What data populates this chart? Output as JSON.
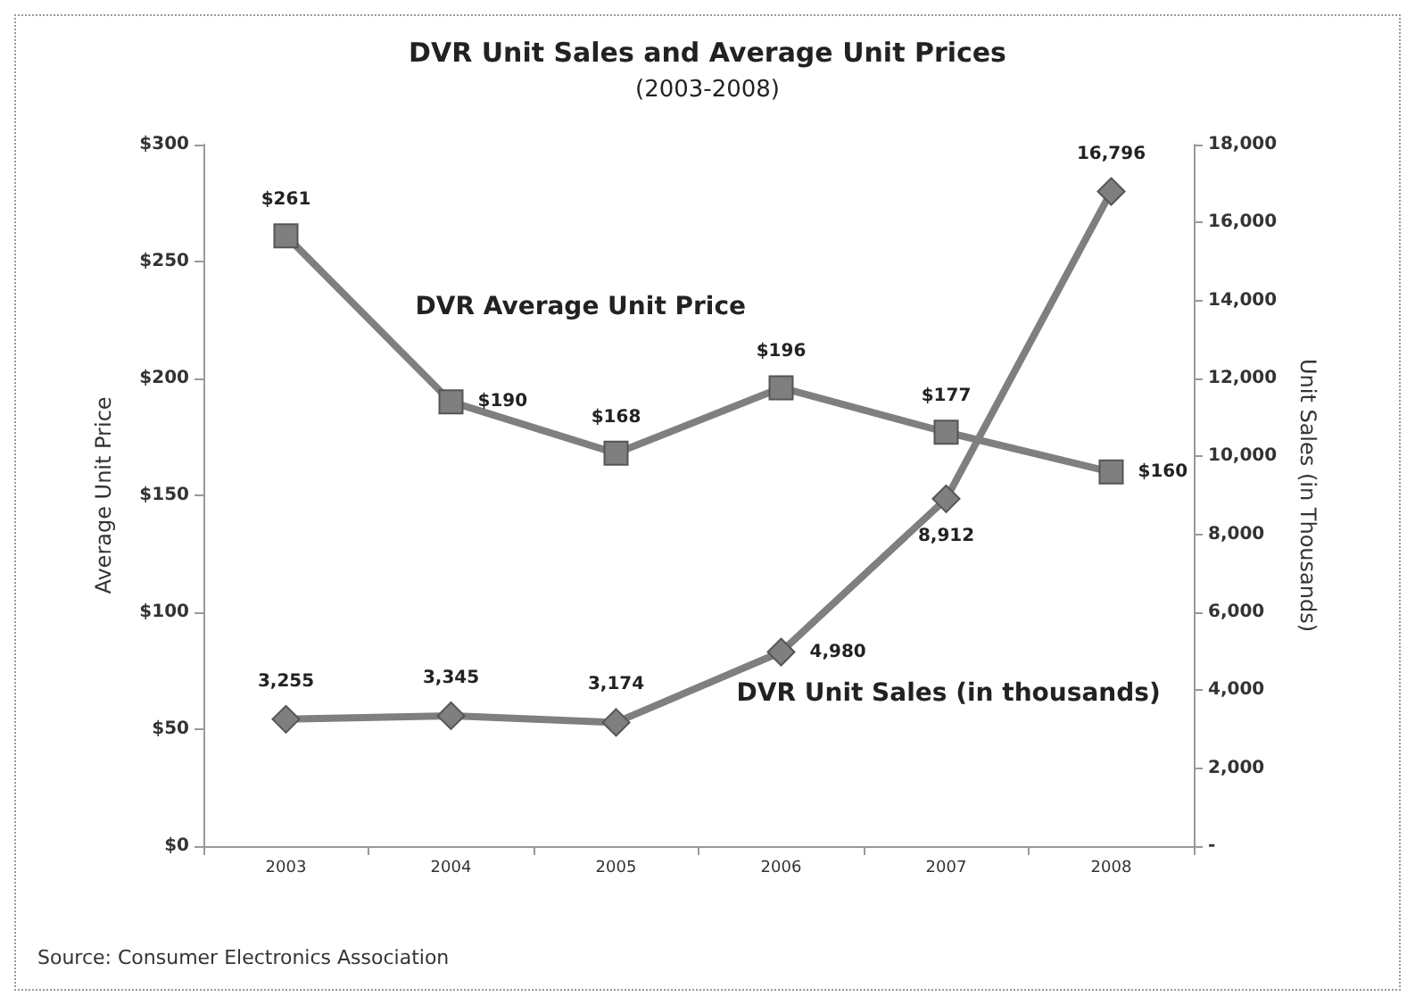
{
  "chart_data": {
    "type": "line",
    "title": "DVR Unit Sales and Average Unit Prices",
    "subtitle": "(2003-2008)",
    "ylabel": "Average Unit Price",
    "y2label": "Unit Sales (in Thousands)",
    "categories": [
      "2003",
      "2004",
      "2005",
      "2006",
      "2007",
      "2008"
    ],
    "series": [
      {
        "name": "DVR Average Unit Price",
        "color": "#7f7f7f",
        "marker": "square",
        "values": [
          261,
          190,
          168,
          196,
          177,
          160
        ],
        "value_labels": [
          "$261",
          "$190",
          "$168",
          "$196",
          "$177",
          "$160"
        ]
      },
      {
        "name": "DVR Unit Sales (in thousands)",
        "color": "#7f7f7f",
        "marker": "diamond",
        "axis": "y2",
        "values": [
          3255,
          3345,
          3174,
          4980,
          8912,
          16796
        ],
        "value_labels": [
          "3,255",
          "3,345",
          "3,174",
          "4,980",
          "8,912",
          "16,796"
        ]
      }
    ],
    "ylim": [
      0,
      300
    ],
    "yticks": [
      {
        "value": 0,
        "label": "$0"
      },
      {
        "value": 50,
        "label": "$50"
      },
      {
        "value": 100,
        "label": "$100"
      },
      {
        "value": 150,
        "label": "$150"
      },
      {
        "value": 200,
        "label": "$200"
      },
      {
        "value": 250,
        "label": "$250"
      },
      {
        "value": 300,
        "label": "$300"
      }
    ],
    "y2lim": [
      0,
      18000
    ],
    "y2ticks": [
      {
        "value": 0,
        "label": "-"
      },
      {
        "value": 2000,
        "label": "2,000"
      },
      {
        "value": 4000,
        "label": "4,000"
      },
      {
        "value": 6000,
        "label": "6,000"
      },
      {
        "value": 8000,
        "label": "8,000"
      },
      {
        "value": 10000,
        "label": "10,000"
      },
      {
        "value": 12000,
        "label": "12,000"
      },
      {
        "value": 14000,
        "label": "14,000"
      },
      {
        "value": 16000,
        "label": "16,000"
      },
      {
        "value": 18000,
        "label": "18,000"
      }
    ],
    "grid": false,
    "legend": false,
    "annotations": [
      "Source: Consumer Electronics Association"
    ]
  }
}
